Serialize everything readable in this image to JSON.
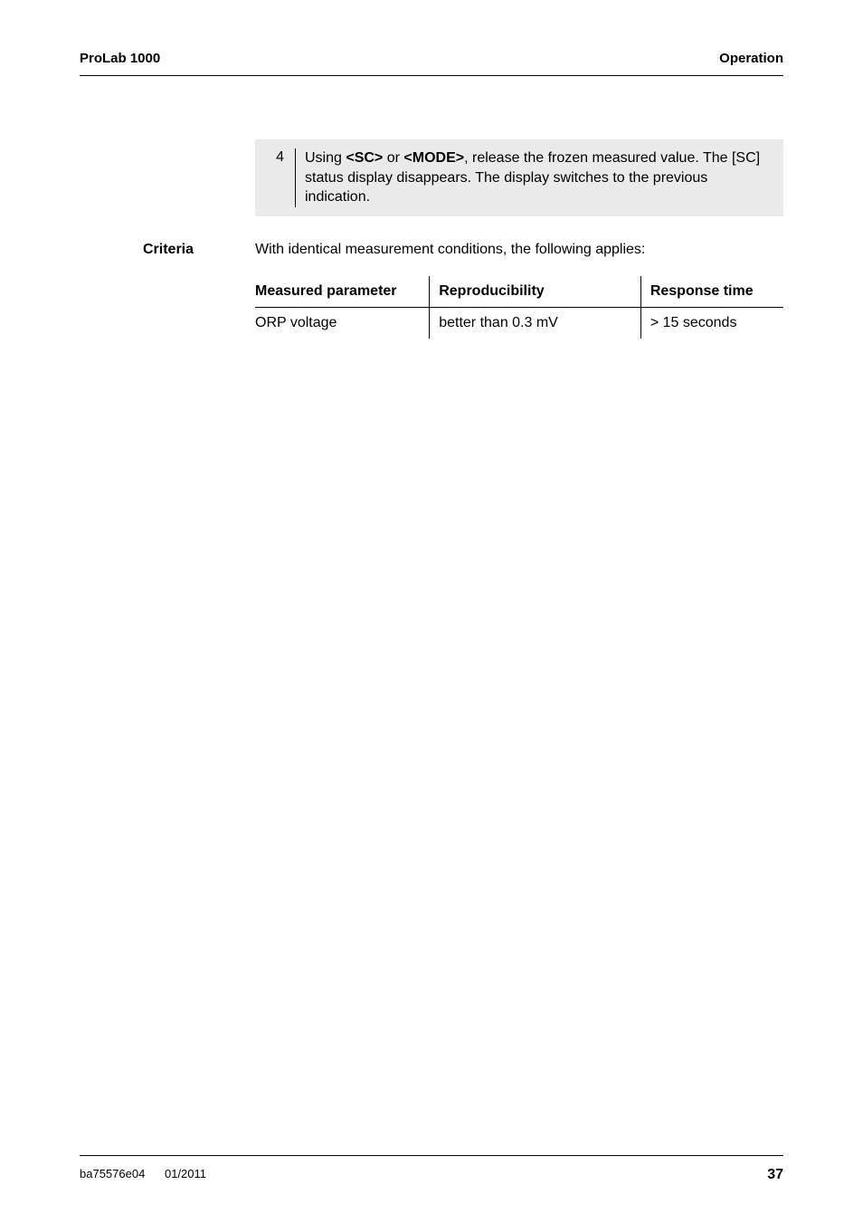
{
  "header": {
    "left": "ProLab 1000",
    "right": "Operation"
  },
  "step": {
    "number": "4",
    "text_before": "Using ",
    "key1": "<SC>",
    "text_mid1": " or ",
    "key2": "<MODE>",
    "text_after": ", release the frozen measured value. The [SC] status display disappears. The display switches to the previous indication."
  },
  "criteria": {
    "label": "Criteria",
    "intro": "With identical measurement conditions, the following applies:",
    "columns": [
      "Measured parameter",
      "Reproducibility",
      "Response time"
    ],
    "row": {
      "param": "ORP voltage",
      "repro": "better than 0.3 mV",
      "resp": "> 15 seconds"
    }
  },
  "footer": {
    "doc": "ba75576e04",
    "date": "01/2011",
    "page": "37"
  }
}
